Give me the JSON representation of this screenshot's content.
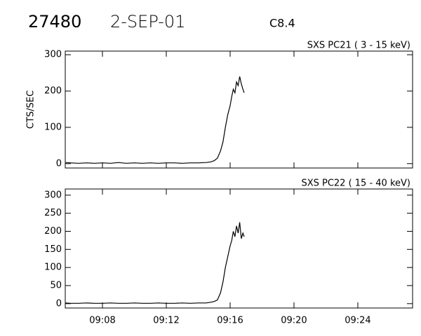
{
  "header": {
    "id": "27480",
    "date": "2-SEP-01",
    "class": "C8.4"
  },
  "chart_data": [
    {
      "type": "line",
      "label": "SXS PC21  (  3 - 15 keV)",
      "ylabel": "CTS/SEC",
      "color": "#000000",
      "x": [
        5.7,
        6,
        6.5,
        7,
        7.5,
        8,
        8.5,
        9,
        9.5,
        10,
        10.5,
        11,
        11.5,
        12,
        12.5,
        13,
        13.5,
        14,
        14.5,
        14.8,
        15,
        15.2,
        15.4,
        15.55,
        15.7,
        15.85,
        16,
        16.1,
        16.2,
        16.3,
        16.4,
        16.5,
        16.6,
        16.7,
        16.8,
        16.88
      ],
      "values": [
        3,
        2,
        1,
        2,
        1,
        2,
        1,
        3,
        1,
        2,
        1,
        2,
        1,
        2,
        2,
        1,
        2,
        2,
        3,
        5,
        8,
        15,
        35,
        60,
        100,
        135,
        160,
        185,
        205,
        195,
        225,
        215,
        240,
        220,
        205,
        195
      ],
      "xlim": [
        5.67,
        27.43
      ],
      "ylim": [
        -12,
        310
      ],
      "yticks": [
        0,
        100,
        200,
        300
      ]
    },
    {
      "type": "line",
      "label": "SXS PC22  ( 15 - 40 keV)",
      "color": "#000000",
      "x": [
        5.7,
        6,
        6.5,
        7,
        7.5,
        8,
        8.5,
        9,
        9.5,
        10,
        10.5,
        11,
        11.5,
        12,
        12.5,
        13,
        13.5,
        14,
        14.5,
        14.8,
        15,
        15.2,
        15.4,
        15.55,
        15.7,
        15.85,
        16,
        16.1,
        16.2,
        16.3,
        16.4,
        16.5,
        16.6,
        16.7,
        16.8,
        16.88
      ],
      "values": [
        2,
        1,
        1,
        2,
        1,
        1,
        2,
        1,
        1,
        2,
        1,
        1,
        2,
        1,
        1,
        2,
        1,
        2,
        2,
        4,
        6,
        10,
        30,
        60,
        100,
        130,
        160,
        175,
        200,
        185,
        215,
        195,
        225,
        180,
        195,
        185
      ],
      "xlim": [
        5.67,
        27.43
      ],
      "ylim": [
        -12,
        317
      ],
      "yticks": [
        0,
        50,
        100,
        150,
        200,
        250,
        300
      ],
      "xticks": [
        {
          "value": 8,
          "label": "09:08"
        },
        {
          "value": 12,
          "label": "09:12"
        },
        {
          "value": 16,
          "label": "09:16"
        },
        {
          "value": 20,
          "label": "09:20"
        },
        {
          "value": 24,
          "label": "09:24"
        }
      ]
    }
  ]
}
